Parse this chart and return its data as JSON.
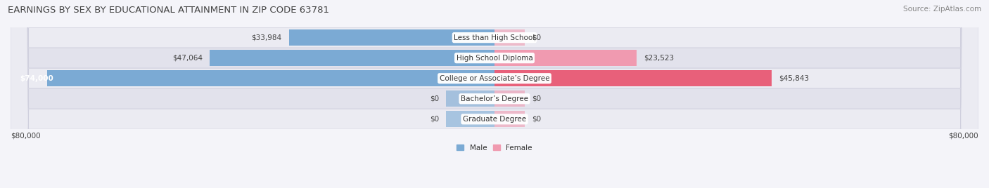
{
  "title": "EARNINGS BY SEX BY EDUCATIONAL ATTAINMENT IN ZIP CODE 63781",
  "source": "Source: ZipAtlas.com",
  "categories": [
    "Less than High School",
    "High School Diploma",
    "College or Associate’s Degree",
    "Bachelor’s Degree",
    "Graduate Degree"
  ],
  "male_values": [
    33984,
    47064,
    74000,
    0,
    0
  ],
  "female_values": [
    0,
    23523,
    45843,
    0,
    0
  ],
  "dummy_male_values": [
    8000,
    8000,
    0,
    8000,
    8000
  ],
  "dummy_female_values": [
    5000,
    0,
    0,
    5000,
    5000
  ],
  "male_color": "#7baad4",
  "female_color": "#f09ab0",
  "female_color_bright": "#e8607a",
  "bar_bg_odd": "#ebebf2",
  "bar_bg_even": "#e2e2ec",
  "max_value": 80000,
  "axis_label_left": "$80,000",
  "axis_label_right": "$80,000",
  "background_color": "#f4f4f9",
  "title_fontsize": 9.5,
  "source_fontsize": 7.5,
  "label_fontsize": 7.5,
  "value_fontsize": 7.5,
  "legend_male": "Male",
  "legend_female": "Female"
}
